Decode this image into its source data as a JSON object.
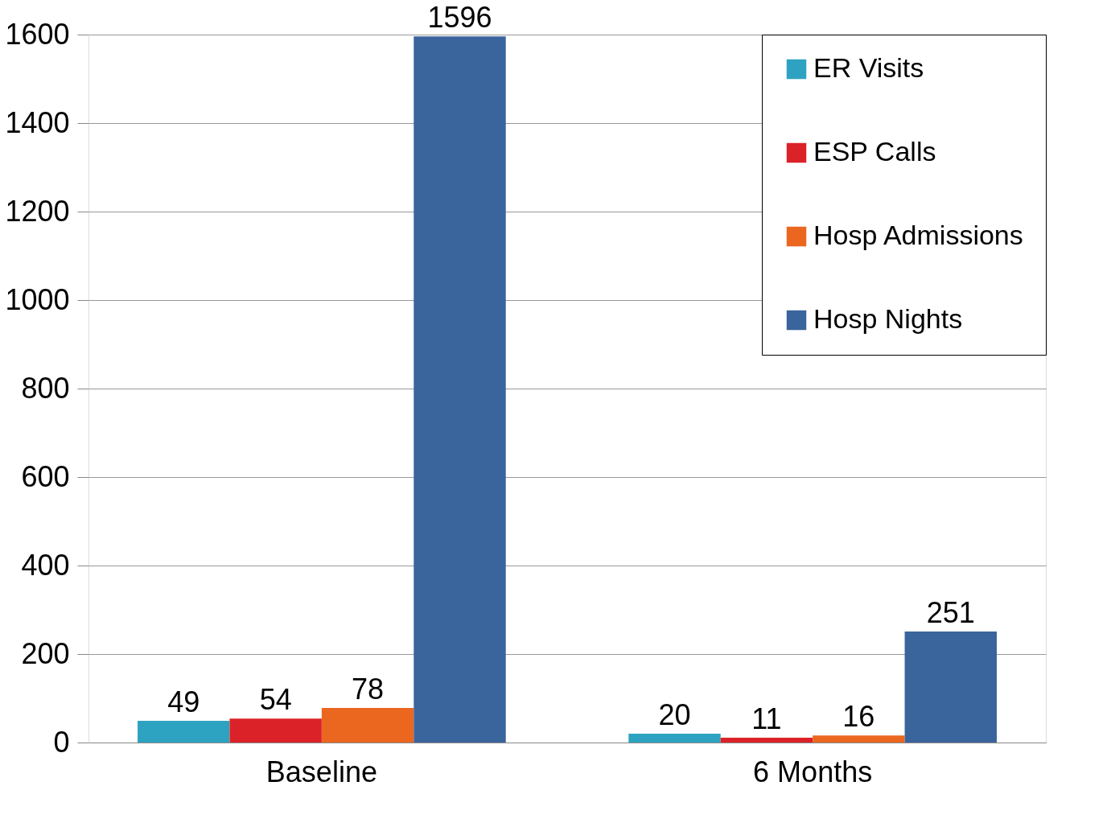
{
  "chart_data": {
    "type": "bar",
    "categories": [
      "Baseline",
      "6 Months"
    ],
    "series": [
      {
        "name": "ER Visits",
        "color": "#2ea3c1",
        "values": [
          49,
          20
        ]
      },
      {
        "name": "ESP Calls",
        "color": "#dc2229",
        "values": [
          54,
          11
        ]
      },
      {
        "name": "Hosp Admissions",
        "color": "#eb6720",
        "values": [
          78,
          16
        ]
      },
      {
        "name": "Hosp Nights",
        "color": "#3a649c",
        "values": [
          1596,
          251
        ]
      }
    ],
    "ylim": [
      0,
      1600
    ],
    "yticks": [
      0,
      200,
      400,
      600,
      800,
      1000,
      1200,
      1400,
      1600
    ],
    "grid": "y",
    "legend": "top right",
    "data_labels": true
  }
}
